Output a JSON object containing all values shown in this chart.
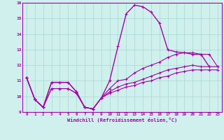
{
  "xlabel": "Windchill (Refroidissement éolien,°C)",
  "background_color": "#cff0ec",
  "grid_color": "#a8d8d0",
  "line_color": "#aa00aa",
  "xlim": [
    -0.5,
    23.5
  ],
  "ylim": [
    9,
    16
  ],
  "yticks": [
    9,
    10,
    11,
    12,
    13,
    14,
    15,
    16
  ],
  "xticks": [
    0,
    1,
    2,
    3,
    4,
    5,
    6,
    7,
    8,
    9,
    10,
    11,
    12,
    13,
    14,
    15,
    16,
    17,
    18,
    19,
    20,
    21,
    22,
    23
  ],
  "series": [
    [
      11.2,
      9.8,
      9.3,
      10.9,
      10.9,
      10.9,
      10.3,
      9.3,
      9.2,
      9.9,
      11.0,
      13.2,
      15.3,
      15.85,
      15.75,
      15.4,
      14.7,
      13.0,
      12.85,
      12.8,
      12.7,
      12.7,
      11.9,
      null
    ],
    [
      11.2,
      9.8,
      9.3,
      10.9,
      10.9,
      10.9,
      10.3,
      9.3,
      9.2,
      9.9,
      10.5,
      11.0,
      11.1,
      11.5,
      11.8,
      12.0,
      12.2,
      12.5,
      12.7,
      12.8,
      12.8,
      12.7,
      12.7,
      11.9
    ],
    [
      11.2,
      9.8,
      9.3,
      10.5,
      10.5,
      10.5,
      10.2,
      9.3,
      9.2,
      9.9,
      10.3,
      10.6,
      10.8,
      10.9,
      11.1,
      11.3,
      11.5,
      11.7,
      11.8,
      11.9,
      12.0,
      11.9,
      11.9,
      11.9
    ],
    [
      11.2,
      9.8,
      9.3,
      10.5,
      10.5,
      10.5,
      10.2,
      9.3,
      9.2,
      9.9,
      10.2,
      10.4,
      10.6,
      10.7,
      10.9,
      11.0,
      11.2,
      11.3,
      11.5,
      11.6,
      11.7,
      11.7,
      11.7,
      11.7
    ]
  ]
}
